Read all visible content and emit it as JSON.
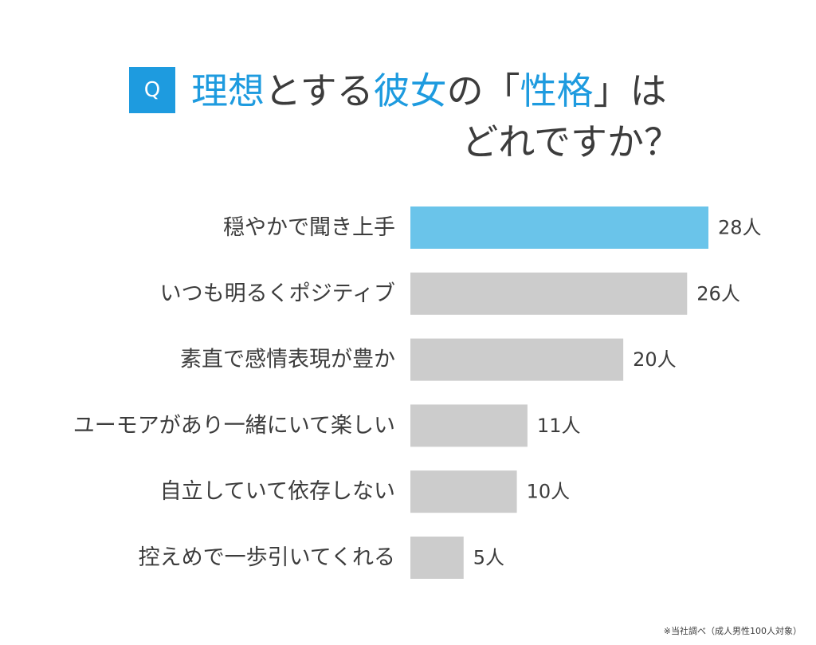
{
  "header": {
    "badge": "Q",
    "title_parts": [
      {
        "text": "理想",
        "highlight": true
      },
      {
        "text": "とする",
        "highlight": false
      },
      {
        "text": "彼女",
        "highlight": true
      },
      {
        "text": "の「",
        "highlight": false
      },
      {
        "text": "性格",
        "highlight": true
      },
      {
        "text": "」は",
        "highlight": false
      }
    ],
    "title_line2": "どれですか？"
  },
  "colors": {
    "accent": "#1e9bdf",
    "highlight_bar": "#6ac4ea",
    "bar": "#cccccc",
    "text": "#3c3c3c"
  },
  "chart_data": {
    "type": "bar",
    "orientation": "horizontal",
    "categories": [
      "穏やかで聞き上手",
      "いつも明るくポジティブ",
      "素直で感情表現が豊か",
      "ユーモアがあり一緒にいて楽しい",
      "自立していて依存しない",
      "控えめで一歩引いてくれる"
    ],
    "values": [
      28,
      26,
      20,
      11,
      10,
      5
    ],
    "value_labels": [
      "28人",
      "26人",
      "20人",
      "11人",
      "10人",
      "5人"
    ],
    "highlight_index": 0,
    "unit": "人",
    "xlim": [
      0,
      28
    ],
    "grid": false,
    "legend": "none"
  },
  "footnote": "※当社調べ（成人男性100人対象）"
}
